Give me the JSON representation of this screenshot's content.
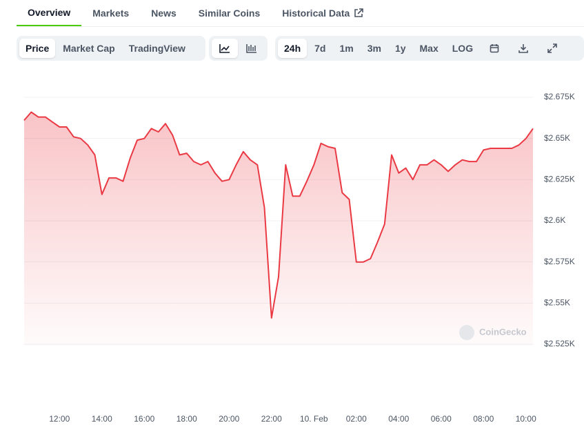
{
  "tabs": [
    "Overview",
    "Markets",
    "News",
    "Similar Coins",
    "Historical Data"
  ],
  "chart_views": [
    "Price",
    "Market Cap",
    "TradingView"
  ],
  "ranges": [
    "24h",
    "7d",
    "1m",
    "3m",
    "1y",
    "Max",
    "LOG"
  ],
  "watermark": "CoinGecko",
  "chart_data": {
    "type": "line",
    "color": "#ea3943",
    "grid": true,
    "categories": [
      null,
      null,
      null,
      null,
      null,
      "12:00",
      null,
      null,
      null,
      null,
      null,
      "14:00",
      null,
      null,
      null,
      null,
      null,
      "16:00",
      null,
      null,
      null,
      null,
      null,
      "18:00",
      null,
      null,
      null,
      null,
      null,
      "20:00",
      null,
      null,
      null,
      null,
      null,
      "22:00",
      null,
      null,
      null,
      null,
      null,
      "10. Feb",
      null,
      null,
      null,
      null,
      null,
      "02:00",
      null,
      null,
      null,
      null,
      null,
      "04:00",
      null,
      null,
      null,
      null,
      null,
      "06:00",
      null,
      null,
      null,
      null,
      null,
      "08:00",
      null,
      null,
      null,
      null,
      null,
      "10:00",
      null
    ],
    "values": [
      2661,
      2666,
      2663,
      2663,
      2660,
      2657,
      2657,
      2651,
      2650,
      2646,
      2640,
      2616,
      2626,
      2626,
      2624,
      2638,
      2649,
      2650,
      2656,
      2654,
      2659,
      2652,
      2640,
      2641,
      2636,
      2634,
      2636,
      2629,
      2624,
      2625,
      2634,
      2642,
      2637,
      2634,
      2608,
      2541,
      2566,
      2634,
      2615,
      2615,
      2624,
      2634,
      2647,
      2645,
      2644,
      2617,
      2613,
      2575,
      2575,
      2577,
      2587,
      2598,
      2640,
      2629,
      2632,
      2625,
      2634,
      2634,
      2637,
      2634,
      2630,
      2634,
      2637,
      2636,
      2636,
      2643,
      2644,
      2644,
      2644,
      2644,
      2646,
      2650,
      2656
    ],
    "ylim": [
      2525,
      2675
    ],
    "yticks": [
      {
        "value": 2525,
        "label": "$2.525K"
      },
      {
        "value": 2550,
        "label": "$2.55K"
      },
      {
        "value": 2575,
        "label": "$2.575K"
      },
      {
        "value": 2600,
        "label": "$2.6K"
      },
      {
        "value": 2625,
        "label": "$2.625K"
      },
      {
        "value": 2650,
        "label": "$2.65K"
      },
      {
        "value": 2675,
        "label": "$2.675K"
      }
    ]
  }
}
